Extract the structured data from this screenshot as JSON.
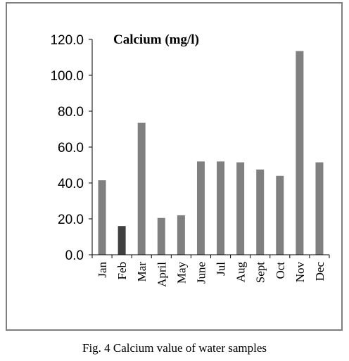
{
  "chart_data": {
    "type": "bar",
    "title": "Calcium (mg/l)",
    "xlabel": "",
    "ylabel": "",
    "categories": [
      "Jan",
      "Feb",
      "Mar",
      "April",
      "May",
      "June",
      "Jul",
      "Aug",
      "Sept",
      "Oct",
      "Nov",
      "Dec"
    ],
    "values": [
      41.5,
      16.0,
      73.5,
      20.5,
      22.0,
      52.0,
      52.0,
      51.5,
      47.5,
      44.0,
      113.5,
      51.5
    ],
    "ylim": [
      0,
      120
    ],
    "yticks": [
      "0.0",
      "20.0",
      "40.0",
      "60.0",
      "80.0",
      "100.0",
      "120.0"
    ],
    "grid": false,
    "colors": {
      "bar": "#808080",
      "bar_highlight": "#404040",
      "axis": "#000000"
    },
    "highlight_index": 1
  },
  "caption": "Fig. 4 Calcium value of water samples"
}
